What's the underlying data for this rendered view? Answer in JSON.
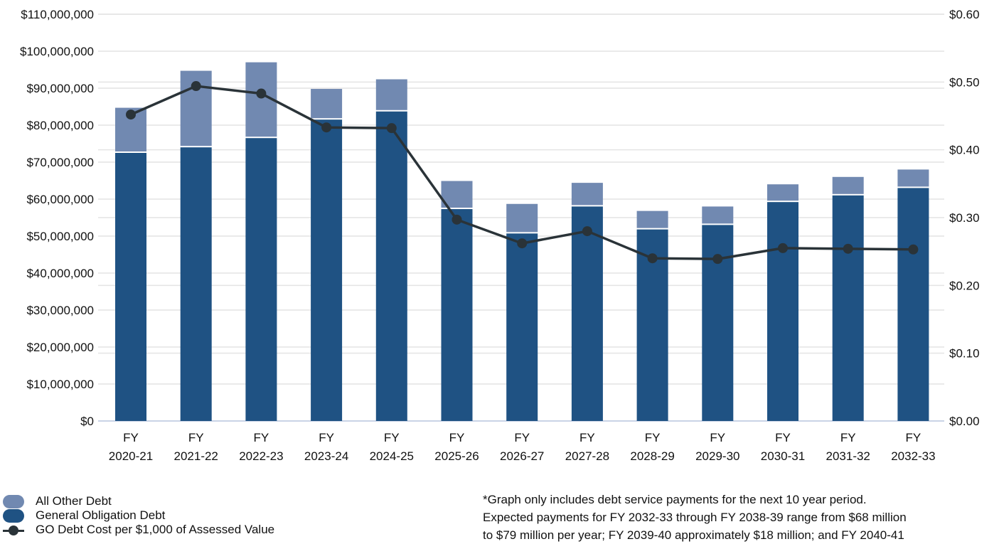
{
  "chart_data": {
    "type": "bar",
    "categories": [
      [
        "FY",
        "2020-21"
      ],
      [
        "FY",
        "2021-22"
      ],
      [
        "FY",
        "2022-23"
      ],
      [
        "FY",
        "2023-24"
      ],
      [
        "FY",
        "2024-25"
      ],
      [
        "FY",
        "2025-26"
      ],
      [
        "FY",
        "2026-27"
      ],
      [
        "FY",
        "2027-28"
      ],
      [
        "FY",
        "2028-29"
      ],
      [
        "FY",
        "2029-30"
      ],
      [
        "FY",
        "2030-31"
      ],
      [
        "FY",
        "2031-32"
      ],
      [
        "FY",
        "2032-33"
      ]
    ],
    "series": [
      {
        "name": "General Obligation Debt",
        "type": "stacked-bar",
        "axis": "left",
        "color": "#1f5283",
        "values": [
          72500000,
          74000000,
          76500000,
          81500000,
          83700000,
          57300000,
          50700000,
          58000000,
          51800000,
          53000000,
          59200000,
          61000000,
          63000000
        ]
      },
      {
        "name": "All Other Debt",
        "type": "stacked-bar",
        "axis": "left",
        "color": "#7189b1",
        "values": [
          12200000,
          20700000,
          20500000,
          8300000,
          8700000,
          7600000,
          8000000,
          6400000,
          5000000,
          5000000,
          4800000,
          5000000,
          5000000
        ]
      },
      {
        "name": "GO Debt Cost per $1,000 of Assessed Value",
        "type": "line",
        "axis": "right",
        "color": "#2a3338",
        "values": [
          0.452,
          0.494,
          0.483,
          0.433,
          0.432,
          0.297,
          0.262,
          0.28,
          0.24,
          0.239,
          0.255,
          0.254,
          0.253
        ]
      }
    ],
    "y_left": {
      "min": 0,
      "max": 110000000,
      "ticks": [
        "$0",
        "$10,000,000",
        "$20,000,000",
        "$30,000,000",
        "$40,000,000",
        "$50,000,000",
        "$60,000,000",
        "$70,000,000",
        "$80,000,000",
        "$90,000,000",
        "$100,000,000",
        "$110,000,000"
      ]
    },
    "y_right": {
      "min": 0,
      "max": 0.6,
      "ticks": [
        "$0.00",
        "$0.10",
        "$0.20",
        "$0.30",
        "$0.40",
        "$0.50",
        "$0.60"
      ]
    },
    "grid": true,
    "legend_position": "bottom-left"
  },
  "footnote": {
    "lines": [
      "*Graph only includes debt service payments for the next 10 year period.",
      "Expected payments for FY 2032-33 through FY 2038-39 range from $68 million",
      "to $79 million per year; FY 2039-40 approximately $18 million; and FY 2040-41"
    ]
  }
}
